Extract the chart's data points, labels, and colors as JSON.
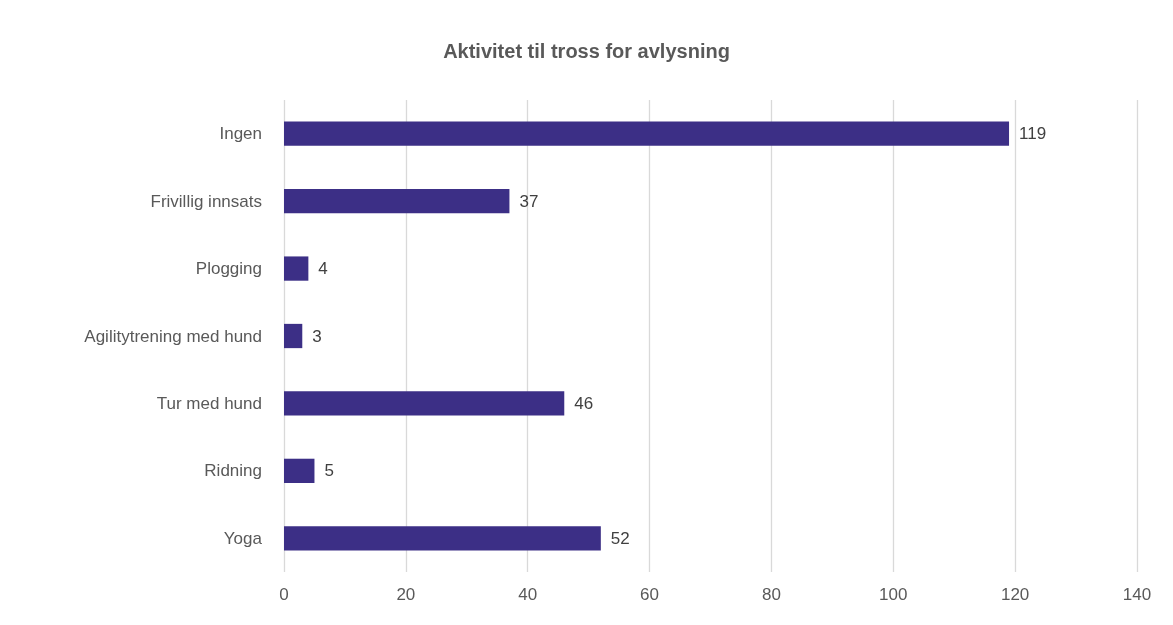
{
  "chart_data": {
    "type": "bar",
    "orientation": "horizontal",
    "title": "Aktivitet til tross for avlysning",
    "categories": [
      "Ingen",
      "Frivillig innsats",
      "Plogging",
      "Agilitytrening med hund",
      "Tur med hund",
      "Ridning",
      "Yoga"
    ],
    "values": [
      119,
      37,
      4,
      3,
      46,
      5,
      52
    ],
    "color": "#3c2f86",
    "xlim": [
      0,
      140
    ],
    "xticks": [
      0,
      20,
      40,
      60,
      80,
      100,
      120,
      140
    ],
    "grid": "x",
    "data_labels": true
  }
}
